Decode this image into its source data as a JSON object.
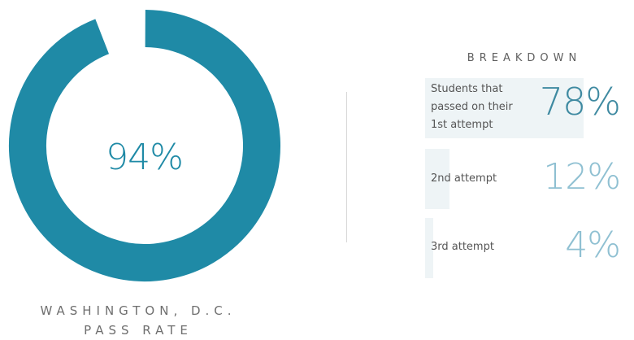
{
  "donut": {
    "center_text": "94%",
    "caption_line1": "WASHINGTON, D.C.",
    "caption_line2": "PASS RATE"
  },
  "breakdown": {
    "title": "BREAKDOWN"
  },
  "colors": {
    "ring": "#1f8aa6",
    "bar_bg": "#eef4f6",
    "value_strong": "#3f8aa1",
    "value_light": "#8fc0d2"
  },
  "chart_data": [
    {
      "type": "pie",
      "title": "",
      "slices": [
        {
          "label": "Pass",
          "value": 94
        },
        {
          "label": "",
          "value": 6
        }
      ]
    },
    {
      "type": "bar",
      "title": "BREAKDOWN",
      "categories": [
        "Students that passed on their 1st attempt",
        "2nd attempt",
        "3rd attempt"
      ],
      "values": [
        78,
        12,
        4
      ],
      "value_labels": [
        "78%",
        "12%",
        "4%"
      ],
      "label_lines": [
        [
          "Students that",
          "passed on their",
          "1st attempt"
        ],
        [
          "2nd attempt"
        ],
        [
          "3rd attempt"
        ]
      ],
      "ylim": [
        0,
        100
      ]
    }
  ]
}
